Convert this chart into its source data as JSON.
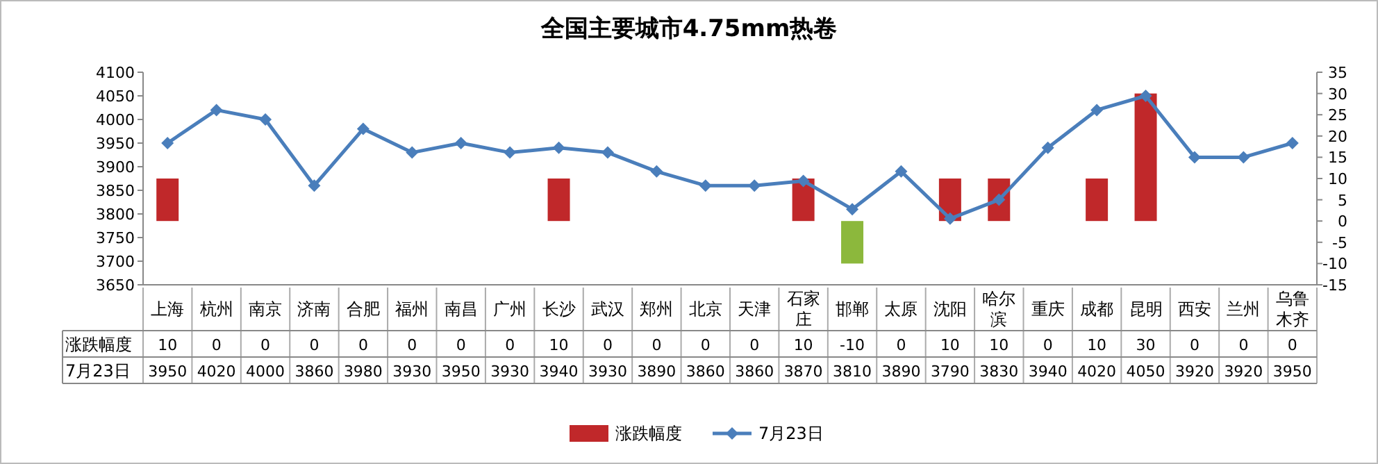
{
  "chart_data": {
    "type": "bar",
    "title": "全国主要城市4.75mm热卷",
    "categories": [
      "上海",
      "杭州",
      "南京",
      "济南",
      "合肥",
      "福州",
      "南昌",
      "广州",
      "长沙",
      "武汉",
      "郑州",
      "北京",
      "天津",
      "石家庄",
      "邯郸",
      "太原",
      "沈阳",
      "哈尔滨",
      "重庆",
      "成都",
      "昆明",
      "西安",
      "兰州",
      "乌鲁木齐"
    ],
    "series": [
      {
        "name": "涨跌幅度",
        "axis": "y2",
        "color": "#c0282a",
        "colors": [
          "#c0282a",
          "#c0282a",
          "#c0282a",
          "#c0282a",
          "#c0282a",
          "#c0282a",
          "#c0282a",
          "#c0282a",
          "#c0282a",
          "#c0282a",
          "#c0282a",
          "#c0282a",
          "#c0282a",
          "#c0282a",
          "#8cb83c",
          "#c0282a",
          "#c0282a",
          "#c0282a",
          "#c0282a",
          "#c0282a",
          "#c0282a",
          "#c0282a",
          "#c0282a",
          "#c0282a"
        ],
        "values": [
          10,
          0,
          0,
          0,
          0,
          0,
          0,
          0,
          10,
          0,
          0,
          0,
          0,
          10,
          -10,
          0,
          10,
          10,
          0,
          10,
          30,
          0,
          0,
          0
        ]
      },
      {
        "name": "7月23日",
        "type": "line",
        "color": "#4a7ebb",
        "marker": "diamond",
        "values": [
          3950,
          4020,
          4000,
          3860,
          3980,
          3930,
          3950,
          3930,
          3940,
          3930,
          3890,
          3860,
          3860,
          3870,
          3810,
          3890,
          3790,
          3830,
          3940,
          4020,
          4050,
          3920,
          3920,
          3950
        ]
      }
    ],
    "ylim": [
      3650,
      4100
    ],
    "yticks": [
      3650,
      3700,
      3750,
      3800,
      3850,
      3900,
      3950,
      4000,
      4050,
      4100
    ],
    "y2lim": [
      -15,
      35
    ],
    "y2ticks": [
      -15,
      -10,
      -5,
      0,
      5,
      10,
      15,
      20,
      25,
      30,
      35
    ],
    "data_labels": true,
    "legend": "bottom"
  }
}
